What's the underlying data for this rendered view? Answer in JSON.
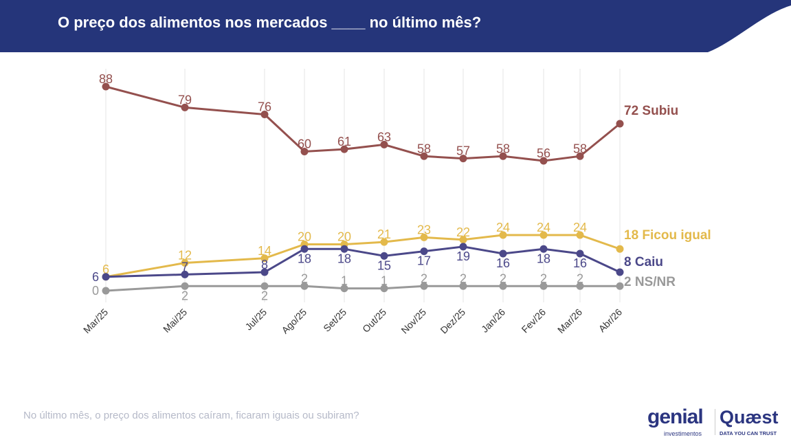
{
  "header": {
    "title": "O preço dos alimentos nos mercados ____ no último mês?"
  },
  "footer": {
    "question": "No último mês, o preço dos alimentos caíram, ficaram iguais ou subiram?"
  },
  "logos": {
    "genial": "genial",
    "genial_sub": "investimentos",
    "quaest": "Quæst",
    "quaest_sub": "DATA YOU CAN TRUST"
  },
  "chart_data": {
    "type": "line",
    "categories": [
      "Mar/25",
      "Mai/25",
      "Jul/25",
      "Ago/25",
      "Set/25",
      "Out/25",
      "Nov/25",
      "Dez/25",
      "Jan/26",
      "Fev/26",
      "Mar/26",
      "Abr/26"
    ],
    "grid": "vertical",
    "legend": "end-labels",
    "series": [
      {
        "name": "Subiu",
        "color": "#94504e",
        "values": [
          88,
          79,
          76,
          60,
          61,
          63,
          58,
          57,
          58,
          56,
          58,
          72
        ],
        "end_label": "72 Subiu"
      },
      {
        "name": "Ficou igual",
        "color": "#e3b94b",
        "values": [
          6,
          12,
          14,
          20,
          20,
          21,
          23,
          22,
          24,
          24,
          24,
          18
        ],
        "end_label": "18 Ficou igual"
      },
      {
        "name": "Caiu",
        "color": "#4b4889",
        "values": [
          6,
          7,
          8,
          18,
          18,
          15,
          17,
          19,
          16,
          18,
          16,
          8
        ],
        "end_label": "8 Caiu"
      },
      {
        "name": "NS/NR",
        "color": "#999999",
        "values": [
          0,
          2,
          2,
          2,
          1,
          1,
          2,
          2,
          2,
          2,
          2,
          2
        ],
        "end_label": "2 NS/NR"
      }
    ]
  }
}
